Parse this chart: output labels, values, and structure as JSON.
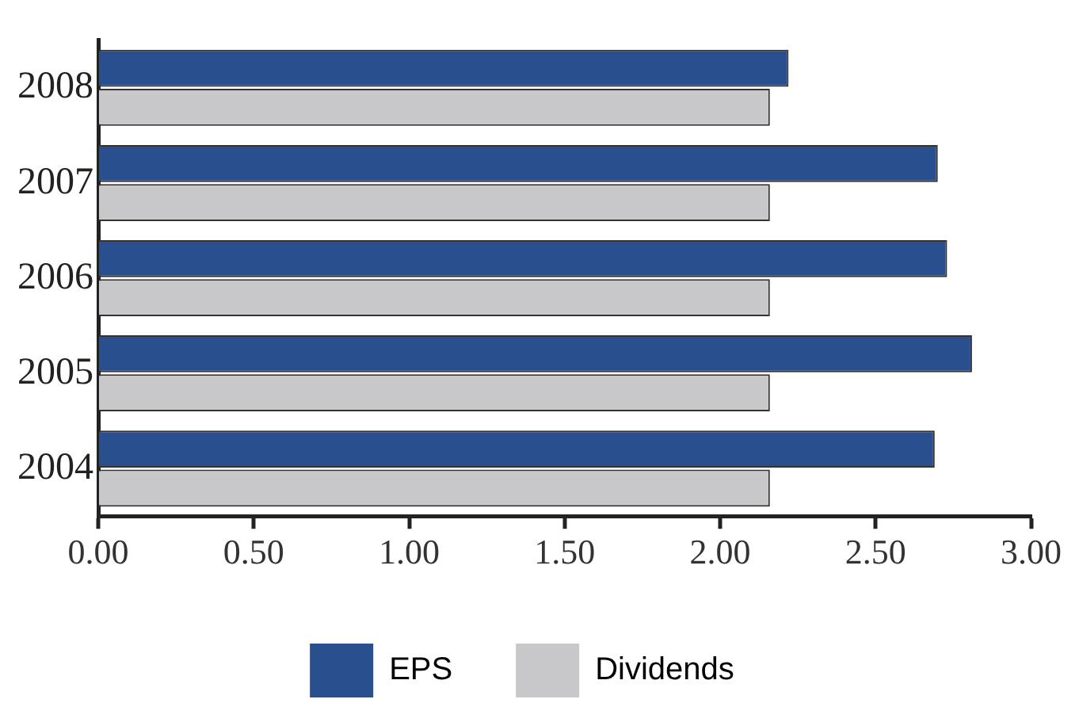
{
  "chart_data": {
    "type": "bar",
    "orientation": "horizontal",
    "categories": [
      "2008",
      "2007",
      "2006",
      "2005",
      "2004"
    ],
    "series": [
      {
        "name": "EPS",
        "color": "#2a4f8f",
        "values": [
          2.22,
          2.7,
          2.73,
          2.81,
          2.69
        ]
      },
      {
        "name": "Dividends",
        "color": "#c8c8ca",
        "values": [
          2.16,
          2.16,
          2.16,
          2.16,
          2.16
        ]
      }
    ],
    "xlim": [
      0,
      3
    ],
    "xticks": [
      {
        "value": 0,
        "label": "0.00"
      },
      {
        "value": 0.5,
        "label": "0.50"
      },
      {
        "value": 1,
        "label": "1.00"
      },
      {
        "value": 1.5,
        "label": "1.50"
      },
      {
        "value": 2,
        "label": "2.00"
      },
      {
        "value": 2.5,
        "label": "2.50"
      },
      {
        "value": 3,
        "label": "3.00"
      }
    ],
    "grid": false,
    "legend": "bottom"
  }
}
